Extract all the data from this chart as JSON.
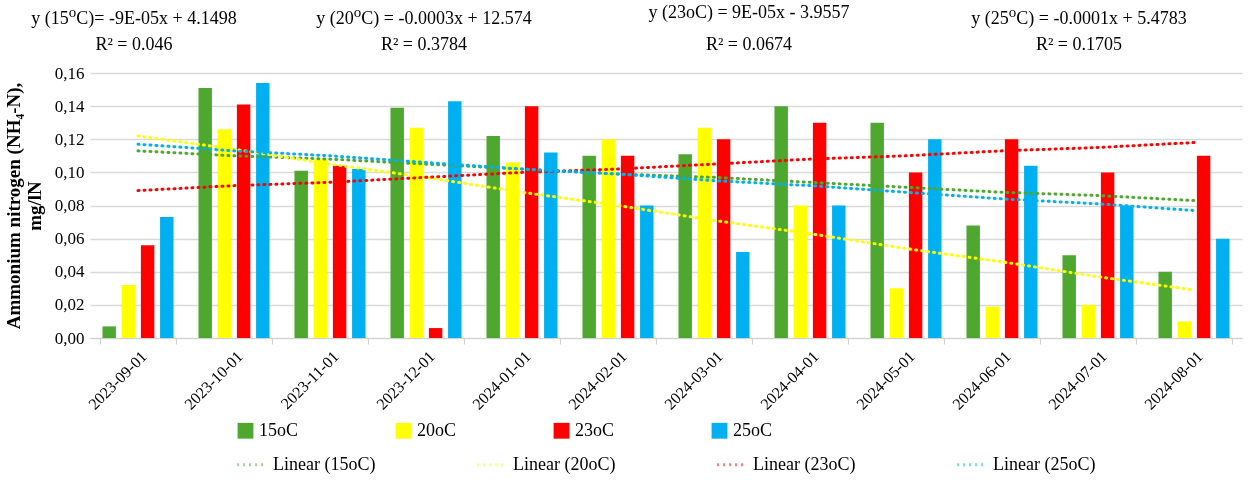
{
  "chart_data": {
    "type": "bar",
    "ylabel": "Ammonium nitrogen (NH₄-N), mg/lN",
    "categories": [
      "2023-09-01",
      "2023-10-01",
      "2023-11-01",
      "2023-12-01",
      "2024-01-01",
      "2024-02-01",
      "2024-03-01",
      "2024-04-01",
      "2024-05-01",
      "2024-06-01",
      "2024-07-01",
      "2024-08-01"
    ],
    "series": [
      {
        "name": "15oC",
        "color": "#4ea72e",
        "values": [
          0.007,
          0.151,
          0.101,
          0.139,
          0.122,
          0.11,
          0.111,
          0.14,
          0.13,
          0.068,
          0.05,
          0.04
        ]
      },
      {
        "name": "20oC",
        "color": "#ffff00",
        "values": [
          0.032,
          0.126,
          0.108,
          0.127,
          0.106,
          0.12,
          0.127,
          0.08,
          0.03,
          0.019,
          0.02,
          0.01
        ]
      },
      {
        "name": "23oC",
        "color": "#ff0000",
        "values": [
          0.056,
          0.141,
          0.104,
          0.006,
          0.14,
          0.11,
          0.12,
          0.13,
          0.1,
          0.12,
          0.1,
          0.11
        ]
      },
      {
        "name": "25oC",
        "color": "#00b0f0",
        "values": [
          0.073,
          0.154,
          0.102,
          0.143,
          0.112,
          0.08,
          0.052,
          0.08,
          0.12,
          0.104,
          0.08,
          0.06
        ]
      },
      {
        "name": "Linear (15oC)",
        "type": "line",
        "line_style": "dotted",
        "color": "#4ea72e",
        "values": [
          0.113,
          0.11,
          0.108,
          0.105,
          0.102,
          0.099,
          0.097,
          0.094,
          0.091,
          0.088,
          0.086,
          0.083
        ]
      },
      {
        "name": "Linear (20oC)",
        "type": "line",
        "line_style": "dotted",
        "color": "#ffff00",
        "values": [
          0.122,
          0.114,
          0.105,
          0.097,
          0.088,
          0.08,
          0.071,
          0.063,
          0.054,
          0.046,
          0.037,
          0.029
        ]
      },
      {
        "name": "Linear (23oC)",
        "type": "line",
        "line_style": "dotted",
        "color": "#ff0000",
        "values": [
          0.089,
          0.092,
          0.094,
          0.097,
          0.1,
          0.102,
          0.105,
          0.108,
          0.11,
          0.113,
          0.115,
          0.118
        ]
      },
      {
        "name": "Linear (25oC)",
        "type": "line",
        "line_style": "dotted",
        "color": "#00b0f0",
        "values": [
          0.117,
          0.113,
          0.11,
          0.106,
          0.102,
          0.099,
          0.095,
          0.092,
          0.088,
          0.084,
          0.081,
          0.077
        ]
      }
    ],
    "ylim": [
      0,
      0.16
    ],
    "yticks": [
      {
        "value": 0,
        "label": "0,00"
      },
      {
        "value": 0.02,
        "label": "0,02"
      },
      {
        "value": 0.04,
        "label": "0,04"
      },
      {
        "value": 0.06,
        "label": "0,06"
      },
      {
        "value": 0.08,
        "label": "0,08"
      },
      {
        "value": 0.1,
        "label": "0,10"
      },
      {
        "value": 0.12,
        "label": "0,12"
      },
      {
        "value": 0.14,
        "label": "0,14"
      },
      {
        "value": 0.16,
        "label": "0,16"
      }
    ],
    "grid": "y",
    "legend": "bottom",
    "annotations": [
      "y (15$^{o}$C)= -9E-05x + 4.1498",
      "R² = 0.046",
      "y (20$^{o}$C) = -0.0003x + 12.574",
      "R² = 0.3784",
      "y (23oC) = 9E-05x - 3.9557",
      "R² = 0.0674",
      "y (25$^{o}$C) = -0.0001x + 5.4783",
      "R² = 0.1705"
    ]
  }
}
